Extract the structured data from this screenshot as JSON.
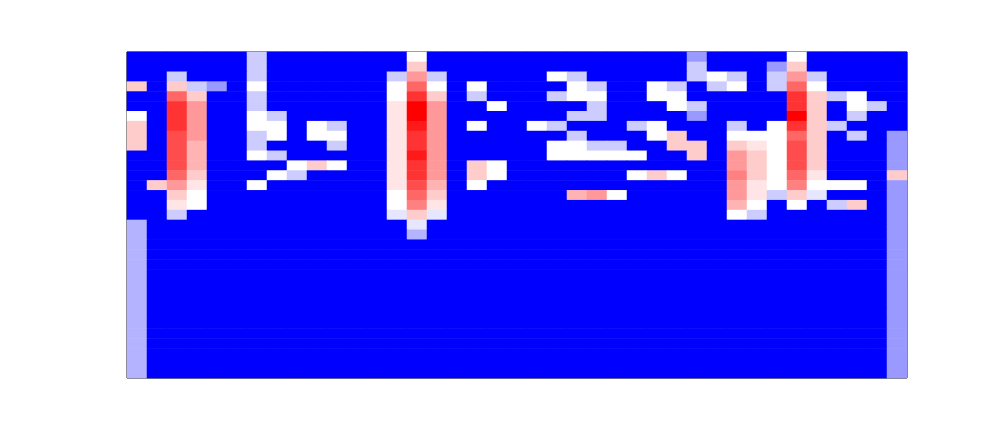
{
  "chart_data": {
    "type": "heatmap",
    "tick_labels": false,
    "grid": false,
    "zlim": [
      0,
      1
    ],
    "z": [
      [
        0,
        0,
        0,
        0,
        0,
        0,
        0.4,
        0,
        0,
        0,
        0,
        0,
        0,
        0,
        0.5,
        0,
        0,
        0,
        0,
        0,
        0,
        0,
        0,
        0,
        0,
        0,
        0,
        0,
        0.3,
        0,
        0,
        0,
        0,
        0.5,
        0,
        0,
        0,
        0,
        0
      ],
      [
        0,
        0,
        0,
        0,
        0,
        0,
        0.4,
        0,
        0,
        0,
        0,
        0,
        0,
        0,
        0.6,
        0,
        0,
        0,
        0,
        0,
        0,
        0,
        0,
        0,
        0,
        0,
        0,
        0,
        0.4,
        0,
        0,
        0,
        0.3,
        0.6,
        0,
        0,
        0,
        0,
        0
      ],
      [
        0,
        0,
        0.4,
        0,
        0,
        0,
        0.4,
        0,
        0,
        0,
        0,
        0,
        0,
        0.4,
        0.7,
        0.4,
        0,
        0,
        0,
        0,
        0,
        0.5,
        0.4,
        0,
        0,
        0,
        0,
        0,
        0.4,
        0.5,
        0.4,
        0,
        0.4,
        0.7,
        0.4,
        0,
        0,
        0,
        0
      ],
      [
        0.6,
        0,
        0.6,
        0.4,
        0.3,
        0,
        0.5,
        0,
        0,
        0,
        0,
        0,
        0,
        0.5,
        0.8,
        0.5,
        0,
        0.5,
        0,
        0,
        0,
        0,
        0.5,
        0.4,
        0,
        0,
        0.5,
        0.4,
        0,
        0.4,
        0.5,
        0,
        0.4,
        0.8,
        0.5,
        0,
        0,
        0,
        0
      ],
      [
        0,
        0,
        0.8,
        0.6,
        0,
        0,
        0.4,
        0,
        0,
        0,
        0,
        0,
        0,
        0.5,
        0.9,
        0.6,
        0,
        0.4,
        0,
        0,
        0,
        0.4,
        0.5,
        0.5,
        0,
        0,
        0.5,
        0.5,
        0,
        0,
        0,
        0,
        0,
        0.9,
        0.6,
        0.4,
        0.5,
        0,
        0
      ],
      [
        0,
        0,
        0.9,
        0.7,
        0,
        0,
        0.4,
        0,
        0,
        0,
        0,
        0,
        0,
        0.55,
        1,
        0.7,
        0,
        0,
        0.5,
        0,
        0,
        0,
        0,
        0.4,
        0,
        0,
        0,
        0.5,
        0.4,
        0,
        0,
        0,
        0,
        0.9,
        0.6,
        0,
        0.5,
        0.4,
        0
      ],
      [
        0.5,
        0,
        0.9,
        0.7,
        0,
        0,
        0.5,
        0.4,
        0,
        0,
        0,
        0,
        0,
        0.55,
        1,
        0.7,
        0,
        0,
        0,
        0,
        0,
        0,
        0.4,
        0.4,
        0,
        0,
        0,
        0,
        0.3,
        0,
        0,
        0,
        0,
        1,
        0.6,
        0,
        0.4,
        0,
        0
      ],
      [
        0.6,
        0,
        0.9,
        0.7,
        0,
        0,
        0.5,
        0.5,
        0,
        0.5,
        0.4,
        0,
        0,
        0.55,
        0.95,
        0.7,
        0,
        0.5,
        0,
        0,
        0.5,
        0.4,
        0,
        0,
        0,
        0.4,
        0.5,
        0,
        0,
        0,
        0.4,
        0,
        0.5,
        0.9,
        0.6,
        0.4,
        0,
        0,
        0
      ],
      [
        0.6,
        0,
        0.85,
        0.7,
        0,
        0,
        0.4,
        0.5,
        0,
        0.5,
        0.5,
        0,
        0,
        0.55,
        0.9,
        0.7,
        0,
        0,
        0,
        0,
        0,
        0,
        0.4,
        0,
        0,
        0,
        0.5,
        0.6,
        0,
        0,
        0.5,
        0.5,
        0.5,
        0.8,
        0.6,
        0,
        0.4,
        0,
        0.3
      ],
      [
        0.6,
        0,
        0.85,
        0.65,
        0,
        0,
        0.4,
        0,
        0,
        0,
        0.4,
        0,
        0,
        0.55,
        0.9,
        0.7,
        0,
        0,
        0,
        0,
        0,
        0.5,
        0.5,
        0.4,
        0.4,
        0,
        0,
        0.6,
        0.6,
        0,
        0.6,
        0.55,
        0.5,
        0.85,
        0.6,
        0,
        0,
        0,
        0.3
      ],
      [
        0,
        0,
        0.85,
        0.65,
        0,
        0,
        0.5,
        0.4,
        0,
        0,
        0,
        0,
        0,
        0.55,
        0.95,
        0.7,
        0,
        0,
        0,
        0,
        0,
        0.5,
        0.5,
        0.5,
        0.5,
        0.5,
        0,
        0,
        0.6,
        0,
        0.7,
        0.6,
        0.5,
        0.85,
        0.6,
        0,
        0,
        0,
        0.3
      ],
      [
        0,
        0,
        0.85,
        0.65,
        0,
        0,
        0,
        0,
        0.5,
        0.6,
        0.5,
        0,
        0,
        0.55,
        0.9,
        0.7,
        0,
        0.6,
        0.5,
        0,
        0,
        0,
        0,
        0,
        0,
        0,
        0,
        0,
        0,
        0,
        0.7,
        0.6,
        0.5,
        0.85,
        0.6,
        0,
        0,
        0,
        0.3
      ],
      [
        0,
        0,
        0.8,
        0.6,
        0,
        0,
        0,
        0.5,
        0.4,
        0,
        0,
        0,
        0,
        0.55,
        0.9,
        0.7,
        0,
        0.6,
        0.5,
        0,
        0,
        0,
        0,
        0,
        0,
        0.5,
        0.6,
        0.5,
        0,
        0,
        0.75,
        0.6,
        0.5,
        0.8,
        0.55,
        0,
        0,
        0,
        0.6
      ],
      [
        0,
        0.6,
        0.7,
        0.55,
        0,
        0,
        0.5,
        0,
        0,
        0,
        0,
        0,
        0,
        0.55,
        0.85,
        0.65,
        0,
        0.5,
        0,
        0,
        0,
        0,
        0,
        0,
        0,
        0,
        0,
        0,
        0,
        0,
        0.7,
        0.55,
        0.5,
        0.75,
        0.5,
        0.5,
        0.5,
        0,
        0.3
      ],
      [
        0,
        0,
        0.6,
        0.5,
        0,
        0,
        0,
        0,
        0,
        0,
        0,
        0,
        0,
        0.5,
        0.8,
        0.6,
        0,
        0,
        0,
        0,
        0,
        0,
        0.65,
        0.7,
        0.5,
        0,
        0,
        0,
        0,
        0,
        0.7,
        0.55,
        0.4,
        0.6,
        0.45,
        0,
        0,
        0,
        0.3
      ],
      [
        0,
        0,
        0.55,
        0.5,
        0,
        0,
        0,
        0,
        0,
        0,
        0,
        0,
        0,
        0.5,
        0.75,
        0.55,
        0,
        0,
        0,
        0,
        0,
        0,
        0,
        0,
        0,
        0,
        0,
        0,
        0,
        0,
        0.65,
        0.5,
        0,
        0.5,
        0,
        0.4,
        0.6,
        0,
        0.3
      ],
      [
        0,
        0,
        0.4,
        0,
        0,
        0,
        0,
        0,
        0,
        0,
        0,
        0,
        0,
        0.45,
        0.6,
        0.45,
        0,
        0,
        0,
        0,
        0,
        0,
        0,
        0,
        0,
        0,
        0,
        0,
        0,
        0,
        0.5,
        0.4,
        0,
        0,
        0,
        0,
        0,
        0,
        0.3
      ],
      [
        0.35,
        0,
        0,
        0,
        0,
        0,
        0,
        0,
        0,
        0,
        0,
        0,
        0,
        0,
        0.45,
        0,
        0,
        0,
        0,
        0,
        0,
        0,
        0,
        0,
        0,
        0,
        0,
        0,
        0,
        0,
        0,
        0,
        0,
        0,
        0,
        0,
        0,
        0,
        0.3
      ],
      [
        0.35,
        0,
        0,
        0,
        0,
        0,
        0,
        0,
        0,
        0,
        0,
        0,
        0,
        0,
        0.35,
        0,
        0,
        0,
        0,
        0,
        0,
        0,
        0,
        0,
        0,
        0,
        0,
        0,
        0,
        0,
        0,
        0,
        0,
        0,
        0,
        0,
        0,
        0,
        0.3
      ],
      [
        0.35,
        0,
        0,
        0,
        0,
        0,
        0,
        0,
        0,
        0,
        0,
        0,
        0,
        0,
        0,
        0,
        0,
        0,
        0,
        0,
        0,
        0,
        0,
        0,
        0,
        0,
        0,
        0,
        0,
        0,
        0,
        0,
        0,
        0,
        0,
        0,
        0,
        0,
        0.3
      ],
      [
        0.35,
        0,
        0,
        0,
        0,
        0,
        0,
        0,
        0,
        0,
        0,
        0,
        0,
        0,
        0,
        0,
        0,
        0,
        0,
        0,
        0,
        0,
        0,
        0,
        0,
        0,
        0,
        0,
        0,
        0,
        0,
        0,
        0,
        0,
        0,
        0,
        0,
        0,
        0.3
      ],
      [
        0.35,
        0,
        0,
        0,
        0,
        0,
        0,
        0,
        0,
        0,
        0,
        0,
        0,
        0,
        0,
        0,
        0,
        0,
        0,
        0,
        0,
        0,
        0,
        0,
        0,
        0,
        0,
        0,
        0,
        0,
        0,
        0,
        0,
        0,
        0,
        0,
        0,
        0,
        0.3
      ],
      [
        0.35,
        0,
        0,
        0,
        0,
        0,
        0,
        0,
        0,
        0,
        0,
        0,
        0,
        0,
        0,
        0,
        0,
        0,
        0,
        0,
        0,
        0,
        0,
        0,
        0,
        0,
        0,
        0,
        0,
        0,
        0,
        0,
        0,
        0,
        0,
        0,
        0,
        0,
        0.3
      ],
      [
        0.35,
        0,
        0,
        0,
        0,
        0,
        0,
        0,
        0,
        0,
        0,
        0,
        0,
        0,
        0,
        0,
        0,
        0,
        0,
        0,
        0,
        0,
        0,
        0,
        0,
        0,
        0,
        0,
        0,
        0,
        0,
        0,
        0,
        0,
        0,
        0,
        0,
        0,
        0.3
      ],
      [
        0.35,
        0,
        0,
        0,
        0,
        0,
        0,
        0,
        0,
        0,
        0,
        0,
        0,
        0,
        0,
        0,
        0,
        0,
        0,
        0,
        0,
        0,
        0,
        0,
        0,
        0,
        0,
        0,
        0,
        0,
        0,
        0,
        0,
        0,
        0,
        0,
        0,
        0,
        0.3
      ],
      [
        0.35,
        0,
        0,
        0,
        0,
        0,
        0,
        0,
        0,
        0,
        0,
        0,
        0,
        0,
        0,
        0,
        0,
        0,
        0,
        0,
        0,
        0,
        0,
        0,
        0,
        0,
        0,
        0,
        0,
        0,
        0,
        0,
        0,
        0,
        0,
        0,
        0,
        0,
        0.3
      ],
      [
        0.35,
        0,
        0,
        0,
        0,
        0,
        0,
        0,
        0,
        0,
        0,
        0,
        0,
        0,
        0,
        0,
        0,
        0,
        0,
        0,
        0,
        0,
        0,
        0,
        0,
        0,
        0,
        0,
        0,
        0,
        0,
        0,
        0,
        0,
        0,
        0,
        0,
        0,
        0.3
      ],
      [
        0.35,
        0,
        0,
        0,
        0,
        0,
        0,
        0,
        0,
        0,
        0,
        0,
        0,
        0,
        0,
        0,
        0,
        0,
        0,
        0,
        0,
        0,
        0,
        0,
        0,
        0,
        0,
        0,
        0,
        0,
        0,
        0,
        0,
        0,
        0,
        0,
        0,
        0,
        0.3
      ],
      [
        0.35,
        0,
        0,
        0,
        0,
        0,
        0,
        0,
        0,
        0,
        0,
        0,
        0,
        0,
        0,
        0,
        0,
        0,
        0,
        0,
        0,
        0,
        0,
        0,
        0,
        0,
        0,
        0,
        0,
        0,
        0,
        0,
        0,
        0,
        0,
        0,
        0,
        0,
        0.3
      ],
      [
        0.35,
        0,
        0,
        0,
        0,
        0,
        0,
        0,
        0,
        0,
        0,
        0,
        0,
        0,
        0,
        0,
        0,
        0,
        0,
        0,
        0,
        0,
        0,
        0,
        0,
        0,
        0,
        0,
        0,
        0,
        0,
        0,
        0,
        0,
        0,
        0,
        0,
        0,
        0.3
      ],
      [
        0.35,
        0,
        0,
        0,
        0,
        0,
        0,
        0,
        0,
        0,
        0,
        0,
        0,
        0,
        0,
        0,
        0,
        0,
        0,
        0,
        0,
        0,
        0,
        0,
        0,
        0,
        0,
        0,
        0,
        0,
        0,
        0,
        0,
        0,
        0,
        0,
        0,
        0,
        0.3
      ],
      [
        0.35,
        0,
        0,
        0,
        0,
        0,
        0,
        0,
        0,
        0,
        0,
        0,
        0,
        0,
        0,
        0,
        0,
        0,
        0,
        0,
        0,
        0,
        0,
        0,
        0,
        0,
        0,
        0,
        0,
        0,
        0,
        0,
        0,
        0,
        0,
        0,
        0,
        0,
        0.3
      ],
      [
        0.35,
        0,
        0,
        0,
        0,
        0,
        0,
        0,
        0,
        0,
        0,
        0,
        0,
        0,
        0,
        0,
        0,
        0,
        0,
        0,
        0,
        0,
        0,
        0,
        0,
        0,
        0,
        0,
        0,
        0,
        0,
        0,
        0,
        0,
        0,
        0,
        0,
        0,
        0.3
      ]
    ]
  }
}
